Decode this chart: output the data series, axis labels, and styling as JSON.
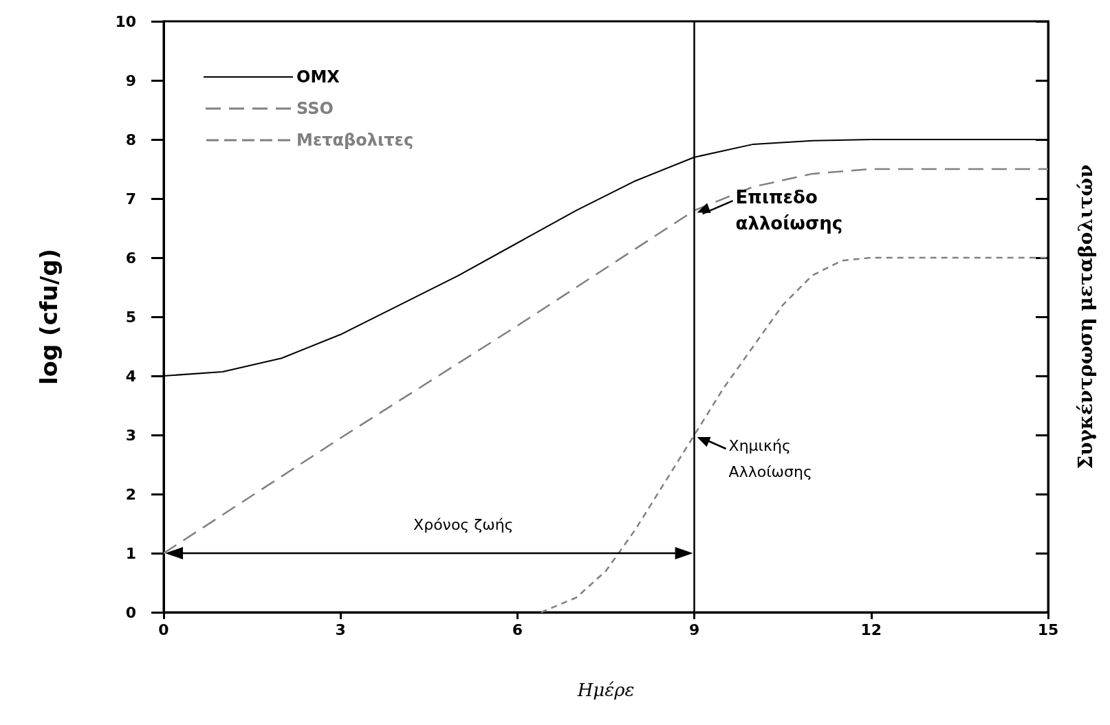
{
  "chart_data": {
    "type": "line",
    "xlabel": "Ημέρε",
    "ylabel": "log (cfu/g)",
    "y2label": "Συγκέντρωση μεταβολιτών",
    "xlim": [
      0,
      15
    ],
    "xticks": [
      0,
      3,
      6,
      9,
      12,
      15
    ],
    "ylim": [
      0,
      10
    ],
    "yticks": [
      0,
      1,
      2,
      3,
      4,
      5,
      6,
      7,
      8,
      9,
      10
    ],
    "grid": false,
    "legend": "top left",
    "marker": "none",
    "series": [
      {
        "name": "ΟΜΧ",
        "color": "#000000",
        "line_style": "solid",
        "x": [
          0,
          1,
          2,
          3,
          4,
          5,
          6,
          7,
          8,
          9,
          10,
          11,
          12,
          15
        ],
        "values": [
          4.0,
          4.07,
          4.3,
          4.7,
          5.2,
          5.7,
          6.25,
          6.8,
          7.3,
          7.7,
          7.92,
          7.98,
          8.0,
          8.0
        ]
      },
      {
        "name": "SSO",
        "color": "#808080",
        "line_style": "dashed",
        "x": [
          0,
          3,
          6,
          9,
          10,
          11,
          12,
          15
        ],
        "values": [
          1.0,
          2.95,
          4.85,
          6.8,
          7.2,
          7.42,
          7.5,
          7.5
        ]
      },
      {
        "name": "Μεταβολιτες",
        "color": "#808080",
        "line_style": "dotted",
        "x": [
          6.4,
          7,
          7.5,
          8,
          8.5,
          9,
          9.5,
          10,
          10.5,
          11,
          11.5,
          12,
          15
        ],
        "values": [
          0,
          0.25,
          0.7,
          1.4,
          2.2,
          3.0,
          3.8,
          4.5,
          5.2,
          5.7,
          5.95,
          6.0,
          6.0
        ]
      }
    ],
    "ref_lines": [
      {
        "axis": "x",
        "value": 9,
        "color": "#000000",
        "line_style": "solid"
      }
    ],
    "annotations": [
      {
        "text": "Επιπεδο αλλοίωσης",
        "x": 9,
        "y": 6.8
      },
      {
        "text": "Χημικής Αλλοίωσης",
        "x": 9,
        "y": 3.0
      },
      "Χρόνος ζωής"
    ]
  }
}
